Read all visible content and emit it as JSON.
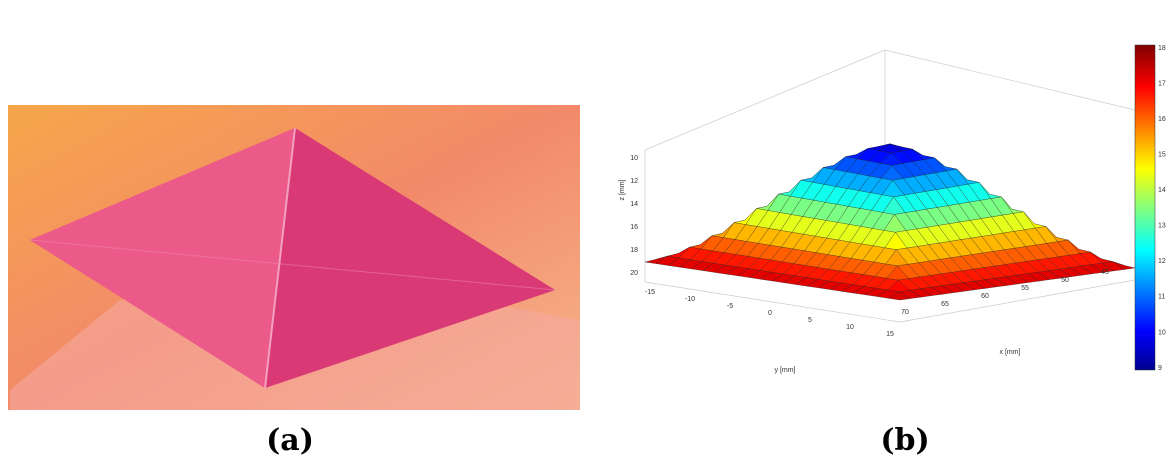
{
  "panels": [
    {
      "caption": "(a)"
    },
    {
      "caption": "(b)",
      "z_label": "z [mm]",
      "y_label": "y [mm]",
      "x_label": "x [mm]",
      "z_ticks": [
        10,
        12,
        14,
        16,
        18,
        20
      ],
      "y_ticks": [
        -15,
        -10,
        -5,
        0,
        5,
        10,
        15
      ],
      "x_ticks": [
        45,
        50,
        55,
        60,
        65,
        70
      ],
      "colorbar_ticks": [
        9,
        10,
        11,
        12,
        13,
        14,
        15,
        16,
        17,
        18
      ]
    }
  ]
}
